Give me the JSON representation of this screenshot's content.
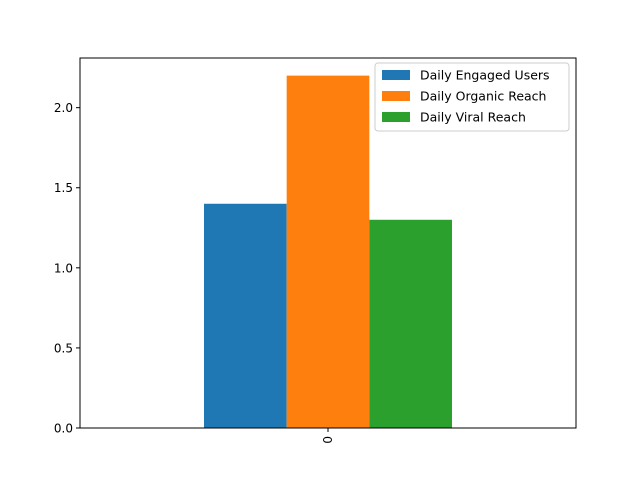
{
  "chart_data": {
    "type": "bar",
    "categories": [
      "0"
    ],
    "series": [
      {
        "name": "Daily Engaged Users",
        "values": [
          1.4
        ],
        "color": "#1f77b4"
      },
      {
        "name": "Daily Organic Reach",
        "values": [
          2.2
        ],
        "color": "#ff7f0e"
      },
      {
        "name": "Daily Viral Reach",
        "values": [
          1.3
        ],
        "color": "#2ca02c"
      }
    ],
    "ylim": [
      0,
      2.31
    ],
    "yticks": [
      "0.0",
      "0.5",
      "1.0",
      "1.5",
      "2.0"
    ],
    "title": "",
    "xlabel": "",
    "ylabel": "",
    "legend_position": "top-right",
    "grid": false
  }
}
